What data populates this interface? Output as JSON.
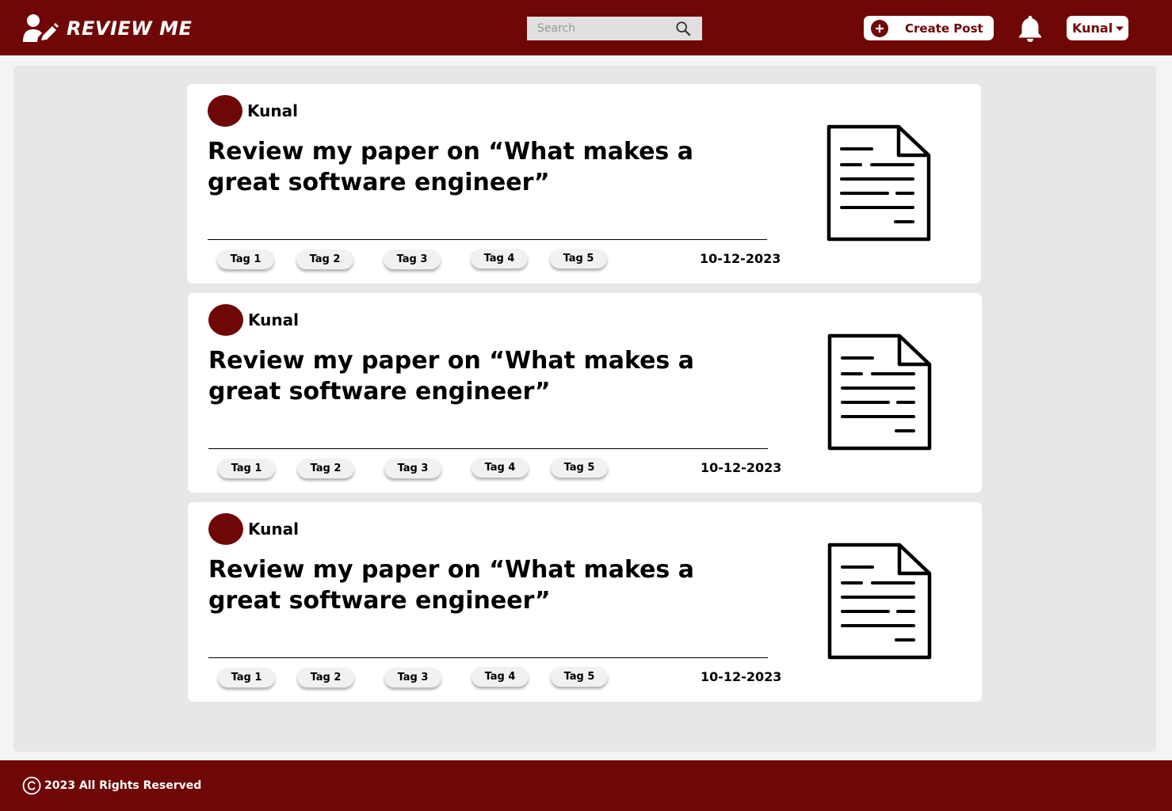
{
  "brand": {
    "name": "REVIEW ME",
    "icon": "user-edit-icon"
  },
  "search": {
    "placeholder": "Search",
    "value": "",
    "icon": "search-icon"
  },
  "header": {
    "create_post_label": "Create Post",
    "notifications_icon": "bell-icon",
    "user_name": "Kunal"
  },
  "posts": [
    {
      "author": "Kunal",
      "title": "Review my paper on “What makes a great software engineer”",
      "tags": [
        "Tag 1",
        "Tag 2",
        "Tag 3",
        "Tag 4",
        "Tag 5"
      ],
      "date": "10-12-2023",
      "icon": "document-icon"
    },
    {
      "author": "Kunal",
      "title": "Review my paper on “What makes a great software engineer”",
      "tags": [
        "Tag 1",
        "Tag 2",
        "Tag 3",
        "Tag 4",
        "Tag 5"
      ],
      "date": "10-12-2023",
      "icon": "document-icon"
    },
    {
      "author": "Kunal",
      "title": "Review my paper on “What makes a great software engineer”",
      "tags": [
        "Tag 1",
        "Tag 2",
        "Tag 3",
        "Tag 4",
        "Tag 5"
      ],
      "date": "10-12-2023",
      "icon": "document-icon"
    }
  ],
  "footer": {
    "copyright": "2023 All Rights Reserved",
    "icon": "copyright-icon"
  },
  "colors": {
    "brand": "#6f0707",
    "background": "#e7e7e7",
    "card": "#ffffff"
  }
}
